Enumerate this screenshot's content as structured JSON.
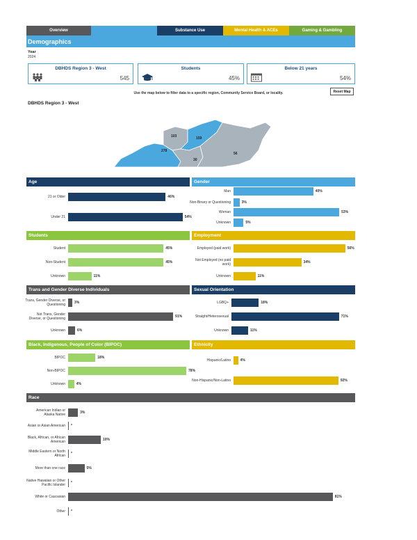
{
  "nav": {
    "tabs": [
      {
        "label": "Overview",
        "color": "#58585a"
      },
      {
        "label": "",
        "color": "#4aa8df"
      },
      {
        "label": "Substance Use",
        "color": "#1b3e66"
      },
      {
        "label": "Mental Health & ACEs",
        "color": "#e2b800"
      },
      {
        "label": "Gaming & Gambling",
        "color": "#72a83d"
      }
    ]
  },
  "page_title": "Demographics",
  "year": {
    "label": "Year",
    "value": "2024"
  },
  "cards": [
    {
      "title": "DBHDS Region 3 - West",
      "value": "545",
      "icon": "people-group-icon"
    },
    {
      "title": "Students",
      "value": "45%",
      "icon": "graduation-cap-icon"
    },
    {
      "title": "Below 21 years",
      "value": "54%",
      "icon": "calendar-icon"
    }
  ],
  "instruction": "Use the map below to filter data to a specific region, Community Service Board, or locality.",
  "reset_label": "Reset Map",
  "map_title": "DBHDS Region 3 - West",
  "map_labels": [
    "103",
    "159",
    "278",
    "30",
    "56"
  ],
  "colors": {
    "navy": "#1b3e66",
    "blue": "#4aa8df",
    "green": "#9dd46a",
    "green_head": "#8cc63f",
    "gold": "#e2b800",
    "gray": "#58585a",
    "map_gray": "#a9b3bc"
  },
  "panels": {
    "age": {
      "title": "Age",
      "rows": [
        {
          "label": "21 or Older",
          "pct": "46%",
          "value": 46
        },
        {
          "label": "Under 21",
          "pct": "54%",
          "value": 54
        }
      ]
    },
    "gender": {
      "title": "Gender",
      "rows": [
        {
          "label": "Man",
          "pct": "40%",
          "value": 40
        },
        {
          "label": "Non-Binary or Questioning",
          "pct": "3%",
          "value": 3
        },
        {
          "label": "Woman",
          "pct": "53%",
          "value": 53
        },
        {
          "label": "Unknown",
          "pct": "5%",
          "value": 5
        }
      ]
    },
    "students": {
      "title": "Students",
      "rows": [
        {
          "label": "Student",
          "pct": "45%",
          "value": 45
        },
        {
          "label": "Non-Student",
          "pct": "45%",
          "value": 45
        },
        {
          "label": "Unknown",
          "pct": "11%",
          "value": 11
        }
      ]
    },
    "employment": {
      "title": "Employment",
      "rows": [
        {
          "label": "Employed (paid work)",
          "pct": "56%",
          "value": 56
        },
        {
          "label": "Not Employed (no paid work)",
          "pct": "34%",
          "value": 34
        },
        {
          "label": "Unknown",
          "pct": "11%",
          "value": 11
        }
      ]
    },
    "trans": {
      "title": "Trans and Gender Diverse Individuals",
      "rows": [
        {
          "label": "Trans, Gender Diverse, or Questioning",
          "pct": "3%",
          "value": 3
        },
        {
          "label": "Not Trans, Gender Diverse, or Questioning",
          "pct": "91%",
          "value": 91
        },
        {
          "label": "Unknown",
          "pct": "6%",
          "value": 6
        }
      ]
    },
    "orientation": {
      "title": "Sexual Orientation",
      "rows": [
        {
          "label": "LGBQ+",
          "pct": "18%",
          "value": 18
        },
        {
          "label": "Straight/Heterosexual",
          "pct": "71%",
          "value": 71
        },
        {
          "label": "Unknown",
          "pct": "11%",
          "value": 11
        }
      ]
    },
    "bipoc": {
      "title": "Black, Indigenous, People of Color (BIPOC)",
      "rows": [
        {
          "label": "BIPOC",
          "pct": "18%",
          "value": 18
        },
        {
          "label": "Non-BIPOC",
          "pct": "78%",
          "value": 78
        },
        {
          "label": "Unknown",
          "pct": "4%",
          "value": 4
        }
      ]
    },
    "ethnicity": {
      "title": "Ethnicity",
      "rows": [
        {
          "label": "Hispanic/Latino",
          "pct": "4%",
          "value": 4
        },
        {
          "label": "Non-Hispanic/Non-Latino",
          "pct": "92%",
          "value": 92
        }
      ]
    },
    "race": {
      "title": "Race",
      "rows": [
        {
          "label": "American Indian or Alaska Native",
          "pct": "3%",
          "value": 3
        },
        {
          "label": "Asian or Asian American",
          "pct": "*",
          "value": 0
        },
        {
          "label": "Black, African, or African American",
          "pct": "10%",
          "value": 10
        },
        {
          "label": "Middle Eastern or North African",
          "pct": "*",
          "value": 0
        },
        {
          "label": "More than one race",
          "pct": "5%",
          "value": 5
        },
        {
          "label": "Native Hawaiian or Other Pacific Islander",
          "pct": "*",
          "value": 0
        },
        {
          "label": "White or Caucasian",
          "pct": "81%",
          "value": 81
        },
        {
          "label": "Other",
          "pct": "*",
          "value": 0
        }
      ]
    }
  }
}
